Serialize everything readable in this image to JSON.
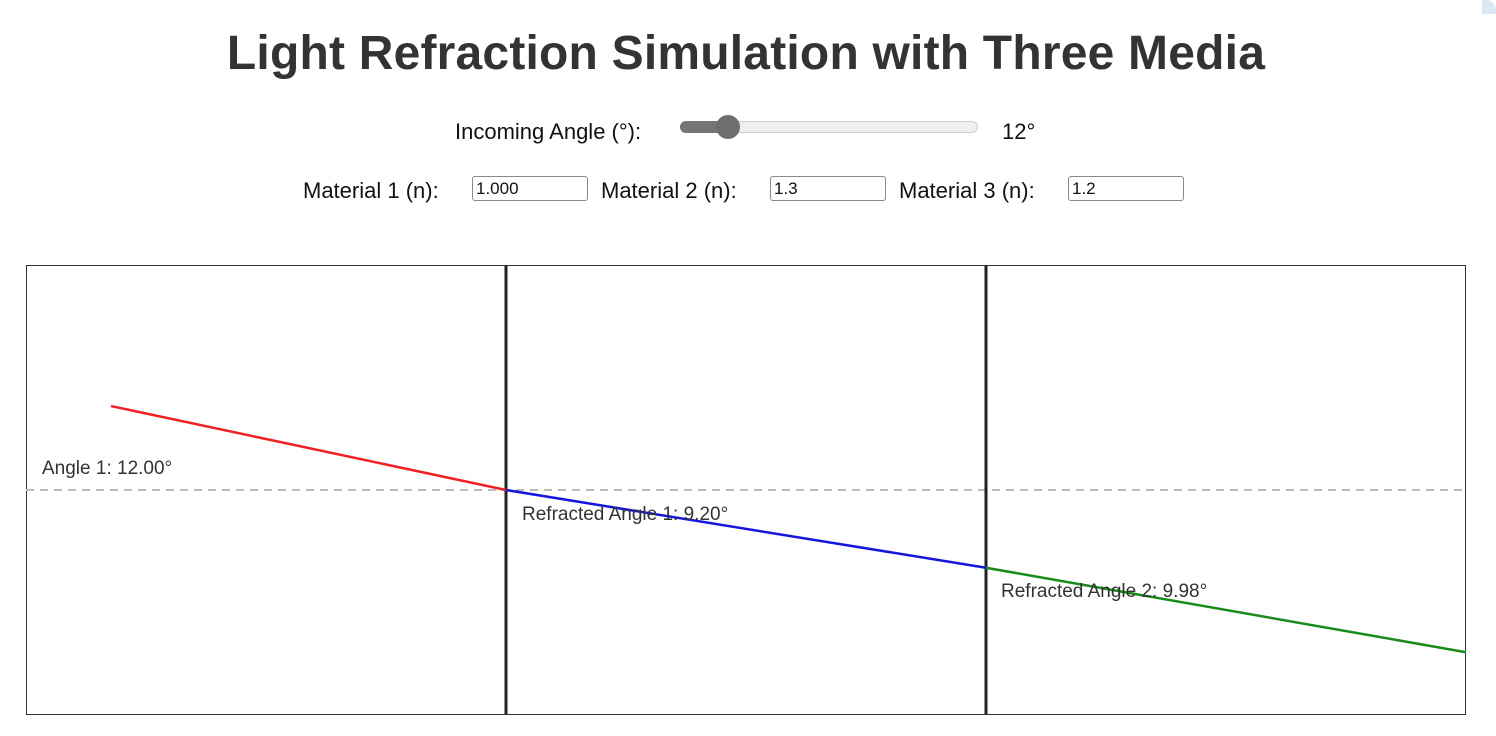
{
  "title": "Light Refraction Simulation with Three Media",
  "angle_control": {
    "label": "Incoming Angle (°):",
    "value": 12,
    "min": 0,
    "max": 90,
    "value_text": "12°"
  },
  "materials": [
    {
      "label": "Material 1 (n):",
      "value": "1.000"
    },
    {
      "label": "Material 2 (n):",
      "value": "1.3"
    },
    {
      "label": "Material 3 (n):",
      "value": "1.2"
    }
  ],
  "simulation": {
    "incident_angle": 12,
    "refracted_angle_1": 9.2,
    "refracted_angle_2": 9.98,
    "labels": {
      "angle1": "Angle 1: 12.00°",
      "refracted1": "Refracted Angle 1: 9.20°",
      "refracted2": "Refracted Angle 2: 9.98°"
    },
    "colors": {
      "incident": "#ee2222",
      "refracted1": "#1515dd",
      "refracted2": "#1a8a1a",
      "boundary": "#222222",
      "normal": "#bbbbbb"
    }
  }
}
